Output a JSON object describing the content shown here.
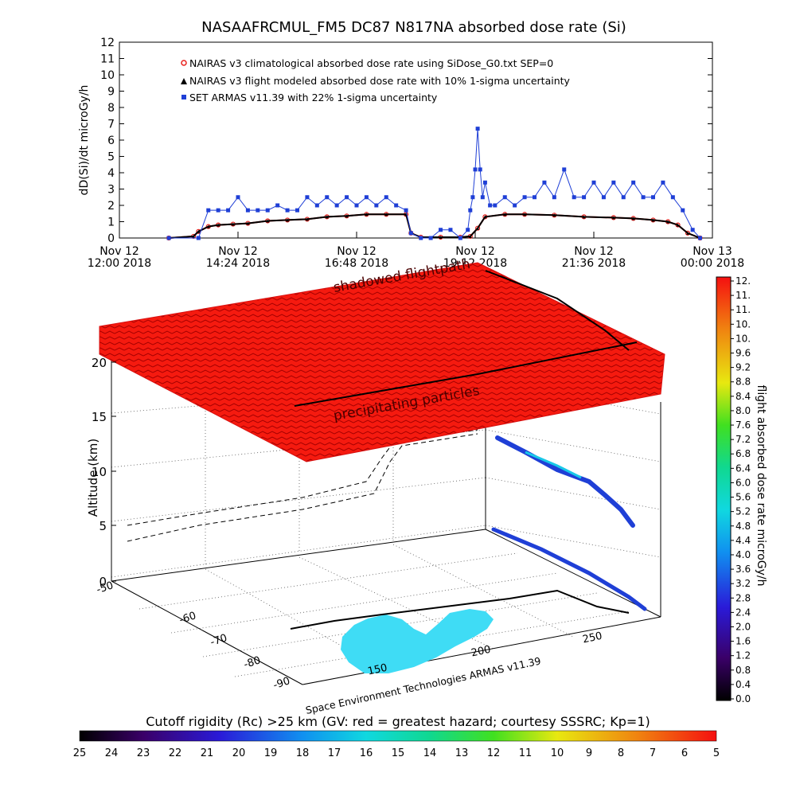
{
  "chart_data": [
    {
      "type": "line",
      "title": "NASAAFRCMUL_FM5 DC87 N817NA absorbed dose rate (Si)",
      "ylabel": "dD(Si)/dt microGy/h",
      "xlabel": "",
      "ylim": [
        0,
        12
      ],
      "yticks": [
        "0",
        "1",
        "2",
        "3",
        "4",
        "5",
        "6",
        "7",
        "8",
        "9",
        "10",
        "11",
        "12"
      ],
      "xlim": [
        12.0,
        24.0
      ],
      "xticks": [
        {
          "value": 12.0,
          "line1": "Nov 12",
          "line2": "12:00 2018"
        },
        {
          "value": 14.4,
          "line1": "Nov 12",
          "line2": "14:24 2018"
        },
        {
          "value": 16.8,
          "line1": "Nov 12",
          "line2": "16:48 2018"
        },
        {
          "value": 19.2,
          "line1": "Nov 12",
          "line2": "19:12 2018"
        },
        {
          "value": 21.6,
          "line1": "Nov 12",
          "line2": "21:36 2018"
        },
        {
          "value": 24.0,
          "line1": "Nov 13",
          "line2": "00:00 2018"
        }
      ],
      "legend_position": "top-left",
      "series": [
        {
          "name": "NAIRAS v3 climatological absorbed dose rate using SiDose_G0.txt SEP=0",
          "color": "#e8201c",
          "marker": "circle",
          "x": [
            13.0,
            13.5,
            13.6,
            13.8,
            14.0,
            14.3,
            14.6,
            15.0,
            15.4,
            15.8,
            16.2,
            16.6,
            17.0,
            17.4,
            17.8,
            17.9,
            18.1,
            18.5,
            18.9,
            19.1,
            19.25,
            19.4,
            19.8,
            20.2,
            20.8,
            21.4,
            22.0,
            22.4,
            22.8,
            23.1,
            23.3,
            23.5,
            23.75
          ],
          "values": [
            0,
            0.1,
            0.4,
            0.7,
            0.8,
            0.85,
            0.9,
            1.05,
            1.1,
            1.15,
            1.3,
            1.35,
            1.45,
            1.45,
            1.45,
            0.3,
            0.05,
            0.05,
            0.05,
            0.1,
            0.6,
            1.3,
            1.45,
            1.45,
            1.4,
            1.3,
            1.25,
            1.2,
            1.1,
            1.0,
            0.8,
            0.3,
            0
          ]
        },
        {
          "name": "NAIRAS v3 flight modeled absorbed dose rate with 10% 1-sigma uncertainty",
          "color": "#000000",
          "marker": "triangle",
          "x": [
            13.0,
            13.5,
            13.6,
            13.8,
            14.0,
            14.3,
            14.6,
            15.0,
            15.4,
            15.8,
            16.2,
            16.6,
            17.0,
            17.4,
            17.8,
            17.9,
            18.1,
            18.5,
            18.9,
            19.1,
            19.25,
            19.4,
            19.8,
            20.2,
            20.8,
            21.4,
            22.0,
            22.4,
            22.8,
            23.1,
            23.3,
            23.5,
            23.75
          ],
          "values": [
            0,
            0.1,
            0.4,
            0.7,
            0.8,
            0.85,
            0.9,
            1.05,
            1.1,
            1.15,
            1.3,
            1.35,
            1.45,
            1.45,
            1.45,
            0.3,
            0.05,
            0.05,
            0.05,
            0.1,
            0.6,
            1.3,
            1.45,
            1.45,
            1.4,
            1.3,
            1.25,
            1.2,
            1.1,
            1.0,
            0.8,
            0.3,
            0
          ]
        },
        {
          "name": "SET ARMAS v11.39 with 22% 1-sigma uncertainty",
          "color": "#1f3fd6",
          "marker": "square",
          "x": [
            13.0,
            13.6,
            13.8,
            14.0,
            14.2,
            14.4,
            14.6,
            14.8,
            15.0,
            15.2,
            15.4,
            15.6,
            15.8,
            16.0,
            16.2,
            16.4,
            16.6,
            16.8,
            17.0,
            17.2,
            17.4,
            17.6,
            17.8,
            17.9,
            18.1,
            18.3,
            18.5,
            18.7,
            18.9,
            19.05,
            19.1,
            19.15,
            19.2,
            19.25,
            19.3,
            19.35,
            19.4,
            19.5,
            19.6,
            19.8,
            20.0,
            20.2,
            20.4,
            20.6,
            20.8,
            21.0,
            21.2,
            21.4,
            21.6,
            21.8,
            22.0,
            22.2,
            22.4,
            22.6,
            22.8,
            23.0,
            23.2,
            23.4,
            23.6,
            23.75
          ],
          "values": [
            0,
            0,
            1.7,
            1.7,
            1.7,
            2.5,
            1.7,
            1.7,
            1.7,
            2.0,
            1.7,
            1.7,
            2.5,
            2.0,
            2.5,
            2.0,
            2.5,
            2.0,
            2.5,
            2.0,
            2.5,
            2.0,
            1.7,
            0.3,
            0,
            0,
            0.5,
            0.5,
            0,
            0.5,
            1.7,
            2.5,
            4.2,
            6.7,
            4.2,
            2.5,
            3.4,
            2.0,
            2.0,
            2.5,
            2.0,
            2.5,
            2.5,
            3.4,
            2.5,
            4.2,
            2.5,
            2.5,
            3.4,
            2.5,
            3.4,
            2.5,
            3.4,
            2.5,
            2.5,
            3.4,
            2.5,
            1.7,
            0.5,
            0
          ]
        }
      ]
    },
    {
      "type": "scatter",
      "title": "",
      "zlabel": "Altitude (km)",
      "zticks": [
        "0",
        "5",
        "10",
        "15",
        "20"
      ],
      "yticks": [
        "-90",
        "-80",
        "-70",
        "-60",
        "-50"
      ],
      "xticks": [
        "150",
        "200",
        "250"
      ],
      "annotations": [
        "shadowed flightpath",
        "precipitating particles"
      ],
      "credit": "Space Environment Technologies ARMAS v11.39",
      "colorbar": {
        "label": "flight absorbed dose rate microGy/h",
        "ticks": [
          "12.",
          "11.",
          "11.",
          "10.",
          "10.",
          "9.6",
          "9.2",
          "8.8",
          "8.4",
          "8.0",
          "7.6",
          "7.2",
          "6.8",
          "6.4",
          "6.0",
          "5.6",
          "5.2",
          "4.8",
          "4.4",
          "4.0",
          "3.6",
          "3.2",
          "2.8",
          "2.4",
          "2.0",
          "1.6",
          "1.2",
          "0.8",
          "0.4",
          "0.0"
        ]
      },
      "cutoff_bar": {
        "label": "Cutoff rigidity (Rc) >25 km (GV: red = greatest hazard; courtesy SSSRC; Kp=1)",
        "ticks": [
          "25",
          "24",
          "23",
          "22",
          "21",
          "20",
          "19",
          "18",
          "17",
          "16",
          "15",
          "14",
          "13",
          "12",
          "11",
          "10",
          "9",
          "8",
          "7",
          "6",
          "5"
        ]
      },
      "colors": {
        "red_layer": "#f51a0f",
        "cyan_region": "#3fdcf5",
        "flightpath": "#000000"
      }
    }
  ]
}
